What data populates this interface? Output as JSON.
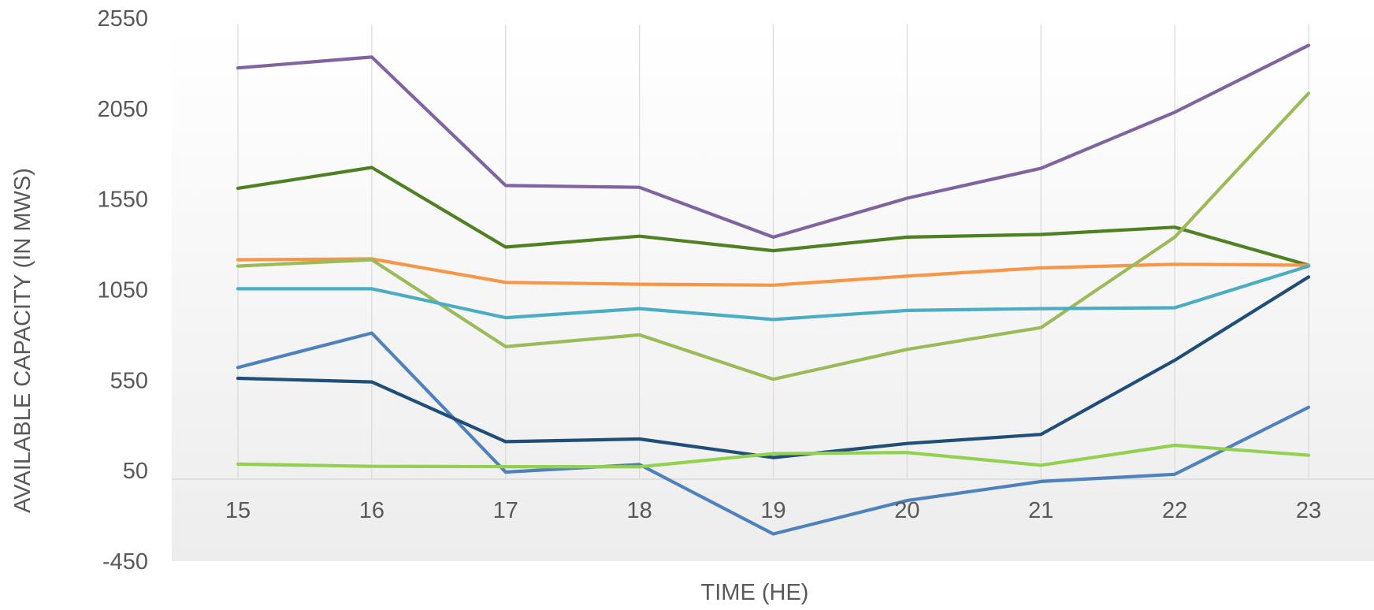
{
  "chart_data": {
    "type": "line",
    "title": "",
    "xlabel": "TIME (HE)",
    "ylabel": "AVAILABLE CAPACITY  (IN MWS)",
    "x": [
      15,
      16,
      17,
      18,
      19,
      20,
      21,
      22,
      23
    ],
    "xtick_labels": [
      "15",
      "16",
      "17",
      "18",
      "19",
      "20",
      "21",
      "22",
      "23"
    ],
    "ylim": [
      -450,
      2550
    ],
    "yticks": [
      -450,
      50,
      550,
      1050,
      1550,
      2050,
      2550
    ],
    "ytick_labels": [
      "-450",
      "50",
      "550",
      "1050",
      "1550",
      "2050",
      "2550"
    ],
    "grid": "vertical",
    "legend": "none",
    "series": [
      {
        "color": "#8064A2",
        "values": [
          2275,
          2335,
          1625,
          1615,
          1340,
          1555,
          1720,
          2030,
          2400
        ]
      },
      {
        "color": "#4F8123",
        "values": [
          1610,
          1725,
          1285,
          1345,
          1265,
          1340,
          1355,
          1395,
          1185
        ]
      },
      {
        "color": "#F79646",
        "values": [
          1215,
          1220,
          1090,
          1080,
          1075,
          1125,
          1170,
          1190,
          1185
        ]
      },
      {
        "color": "#9BBB59",
        "values": [
          1180,
          1215,
          735,
          800,
          555,
          720,
          840,
          1340,
          2135
        ]
      },
      {
        "color": "#4BACC6",
        "values": [
          1055,
          1055,
          895,
          945,
          885,
          935,
          945,
          950,
          1180
        ]
      },
      {
        "color": "#4F81BD",
        "values": [
          620,
          810,
          42,
          84,
          -300,
          -115,
          -10,
          30,
          400
        ]
      },
      {
        "color": "#1F4E79",
        "values": [
          560,
          540,
          210,
          225,
          122,
          200,
          250,
          660,
          1120
        ]
      },
      {
        "color": "#92D050",
        "values": [
          86,
          74,
          72,
          71,
          144,
          150,
          80,
          190,
          135
        ]
      }
    ]
  }
}
